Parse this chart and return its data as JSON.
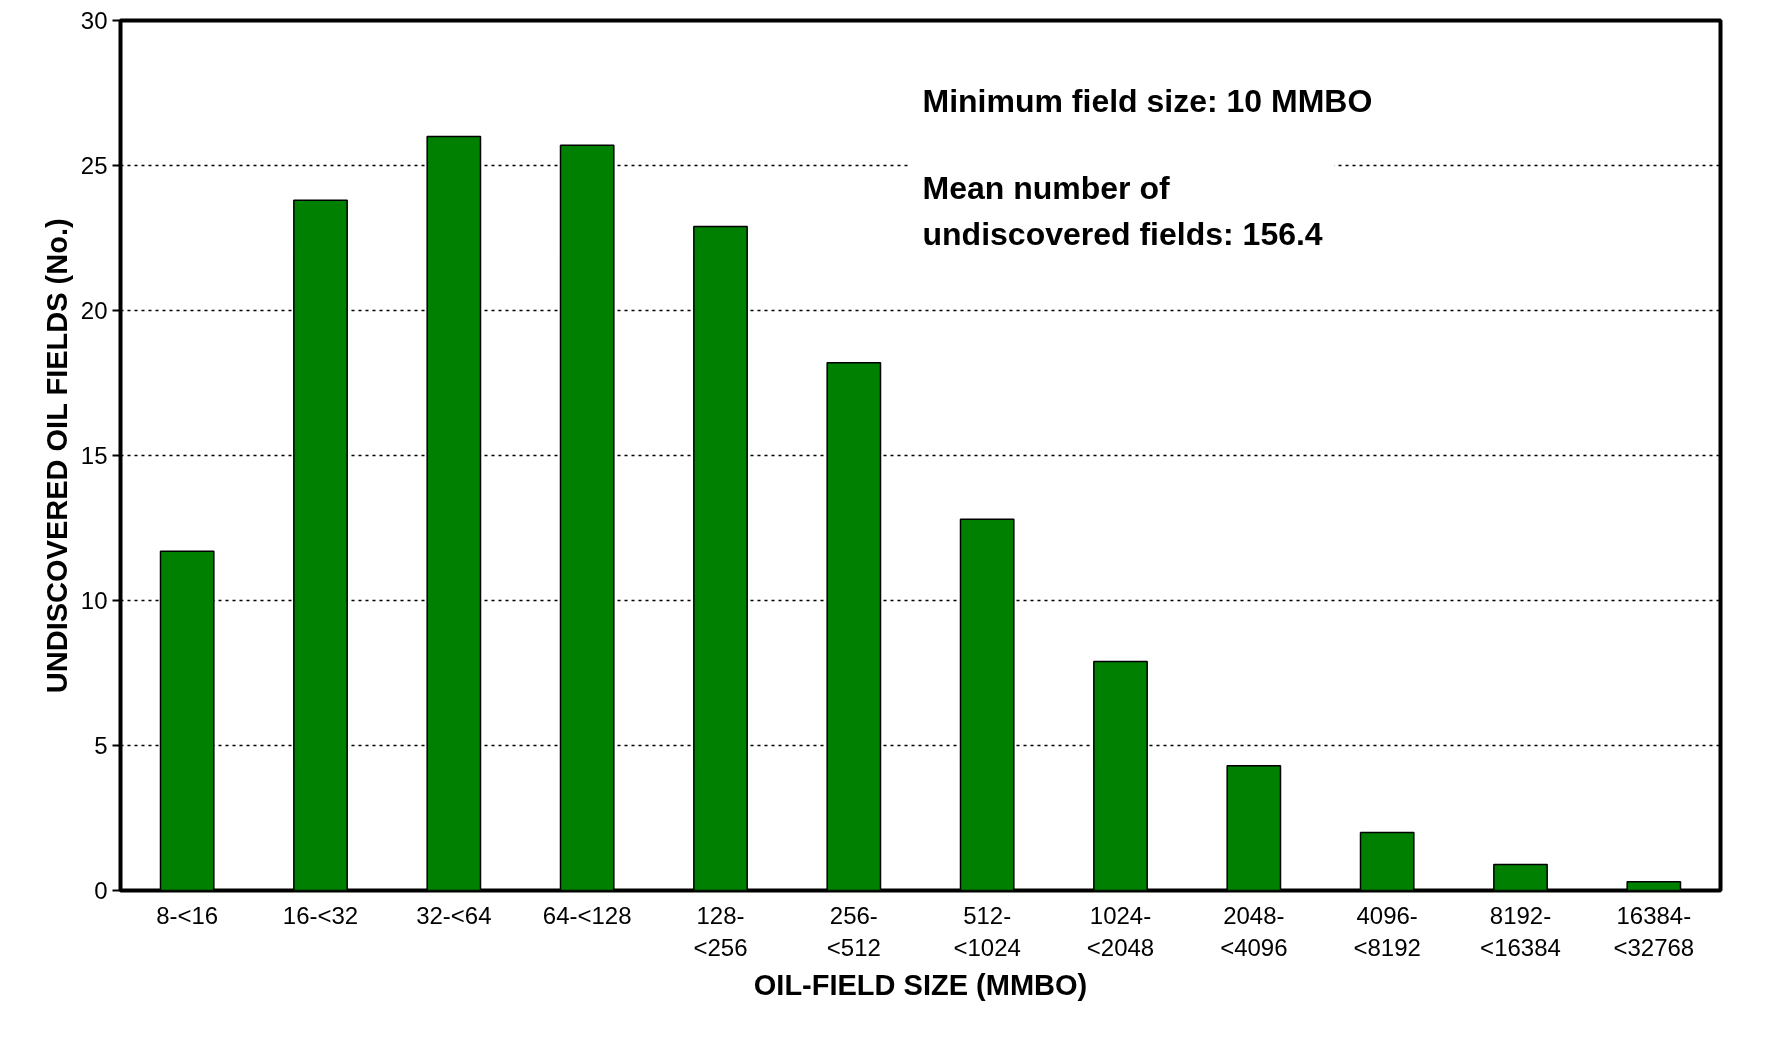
{
  "chart_data": {
    "type": "bar",
    "xlabel": "OIL-FIELD SIZE (MMBO)",
    "ylabel": "UNDISCOVERED OIL FIELDS (No.)",
    "categories": [
      "8-<16",
      "16-<32",
      "32-<64",
      "64-<128",
      "128-<256",
      "256-<512",
      "512-<1024",
      "1024-<2048",
      "2048-<4096",
      "4096-<8192",
      "8192-<16384",
      "16384-<32768"
    ],
    "values": [
      11.7,
      23.8,
      26.0,
      25.7,
      22.9,
      18.2,
      12.8,
      7.9,
      4.3,
      2.0,
      0.9,
      0.3
    ],
    "color": "#008000",
    "ylim": [
      0,
      30
    ],
    "yticks": [
      0,
      5,
      10,
      15,
      20,
      25,
      30
    ],
    "grid": "y",
    "annotations": [
      "Minimum field size: 10 MMBO",
      "Mean number of\nundiscovered fields: 156.4"
    ]
  }
}
